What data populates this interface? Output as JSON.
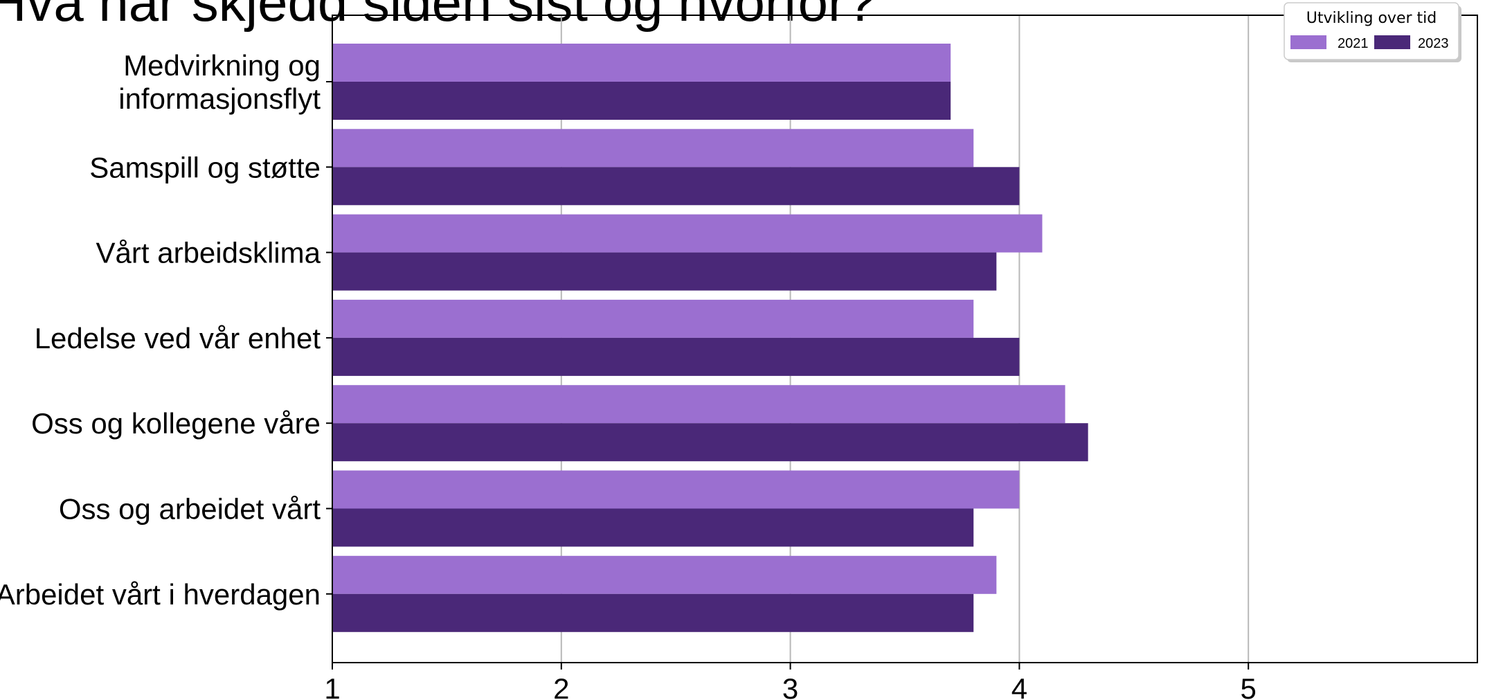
{
  "chart_data": {
    "type": "bar",
    "orientation": "horizontal",
    "title": "Hva har skjedd siden sist og hvorfor?",
    "xlabel": "",
    "ylabel": "",
    "xlim": [
      1,
      6
    ],
    "xticks": [
      1,
      2,
      3,
      4,
      5
    ],
    "grid": "vertical",
    "categories": [
      "Medvirkning og\ninformasjonsflyt",
      "Samspill og støtte",
      "Vårt arbeidsklima",
      "Ledelse ved vår enhet",
      "Oss og kollegene våre",
      "Oss og arbeidet vårt",
      "Arbeidet vårt i hverdagen"
    ],
    "series": [
      {
        "name": "2021",
        "color": "#9b6fd0",
        "values": [
          3.7,
          3.8,
          4.1,
          3.8,
          4.2,
          4.0,
          3.9
        ]
      },
      {
        "name": "2023",
        "color": "#4a2878",
        "values": [
          3.7,
          4.0,
          3.9,
          4.0,
          4.3,
          3.8,
          3.8
        ]
      }
    ],
    "legend": {
      "title": "Utvikling over tid",
      "placement": "top-right"
    }
  }
}
